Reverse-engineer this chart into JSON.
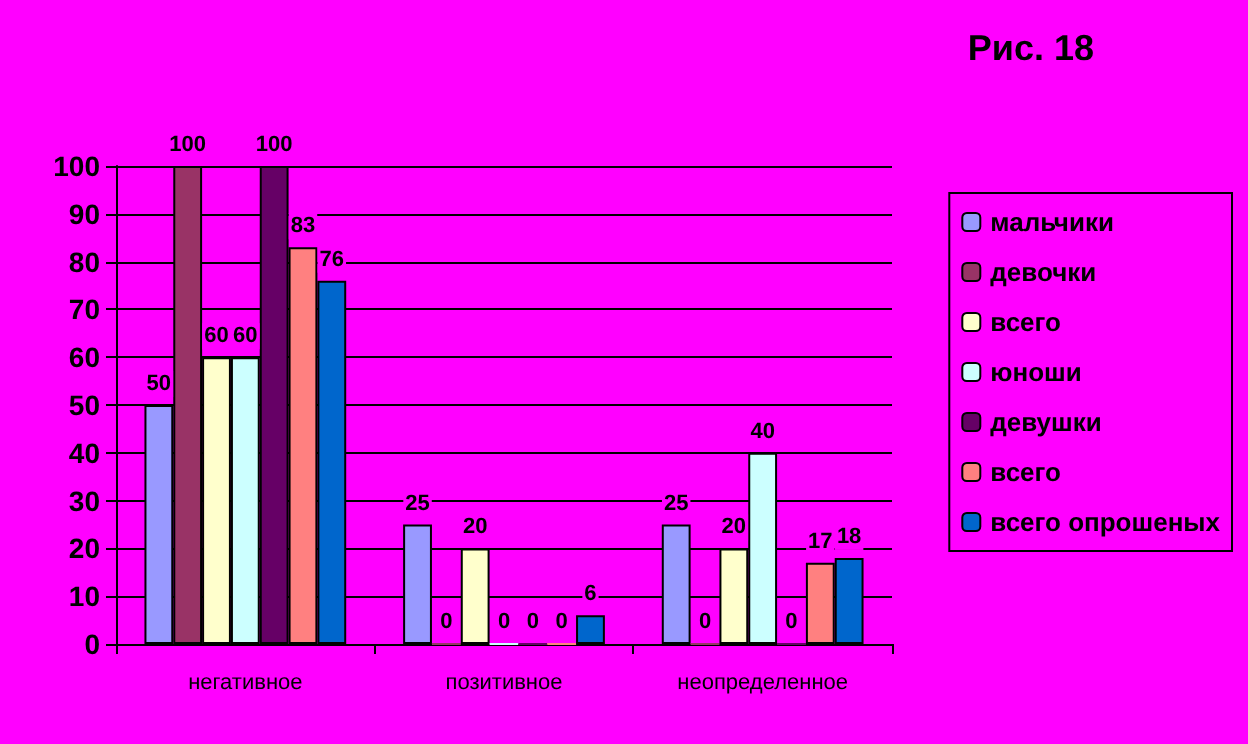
{
  "chart_data": {
    "type": "bar",
    "title": "Рис. 18",
    "categories": [
      "негативное",
      "позитивное",
      "неопределенное"
    ],
    "series": [
      {
        "name": "мальчики",
        "color": "#9999ff",
        "values": [
          50,
          25,
          25
        ]
      },
      {
        "name": "девочки",
        "color": "#993366",
        "values": [
          100,
          0,
          0
        ]
      },
      {
        "name": "всего",
        "color": "#ffffcc",
        "values": [
          60,
          20,
          20
        ]
      },
      {
        "name": "юноши",
        "color": "#ccffff",
        "values": [
          60,
          0,
          40
        ]
      },
      {
        "name": "девушки",
        "color": "#660066",
        "values": [
          100,
          0,
          0
        ]
      },
      {
        "name": "всего",
        "color": "#ff8080",
        "values": [
          83,
          0,
          17
        ]
      },
      {
        "name": "всего опрошеных",
        "color": "#0066cc",
        "values": [
          76,
          6,
          18
        ]
      }
    ],
    "ylim": [
      0,
      100
    ],
    "yticks": [
      0,
      10,
      20,
      30,
      40,
      50,
      60,
      70,
      80,
      90,
      100
    ],
    "grid": "y",
    "legend": "right",
    "data_labels": true
  }
}
